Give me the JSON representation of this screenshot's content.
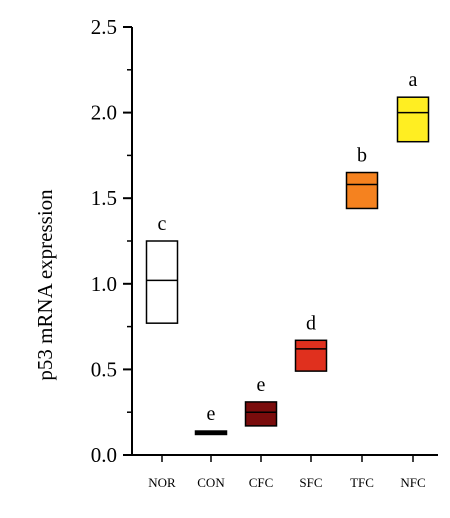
{
  "chart_data": {
    "type": "box",
    "title": "",
    "xlabel": "",
    "ylabel": "p53 mRNA expression",
    "ylim": [
      0,
      2.5
    ],
    "yticks": [
      "0.0",
      "0.5",
      "1.0",
      "1.5",
      "2.0",
      "2.5"
    ],
    "categories": [
      "NOR",
      "CON",
      "CFC",
      "SFC",
      "TFC",
      "NFC"
    ],
    "boxes": [
      {
        "category": "NOR",
        "low": 0.77,
        "mid": 1.02,
        "high": 1.25,
        "letter": "c",
        "color": "#ffffff"
      },
      {
        "category": "CON",
        "low": 0.12,
        "mid": 0.13,
        "high": 0.14,
        "letter": "e",
        "color": "#000000"
      },
      {
        "category": "CFC",
        "low": 0.17,
        "mid": 0.25,
        "high": 0.31,
        "letter": "e",
        "color": "#7a0c0c"
      },
      {
        "category": "SFC",
        "low": 0.49,
        "mid": 0.62,
        "high": 0.67,
        "letter": "d",
        "color": "#e0301e"
      },
      {
        "category": "TFC",
        "low": 1.44,
        "mid": 1.58,
        "high": 1.65,
        "letter": "b",
        "color": "#f5821f"
      },
      {
        "category": "NFC",
        "low": 1.83,
        "mid": 2.0,
        "high": 2.09,
        "letter": "a",
        "color": "#ffee22"
      }
    ]
  }
}
